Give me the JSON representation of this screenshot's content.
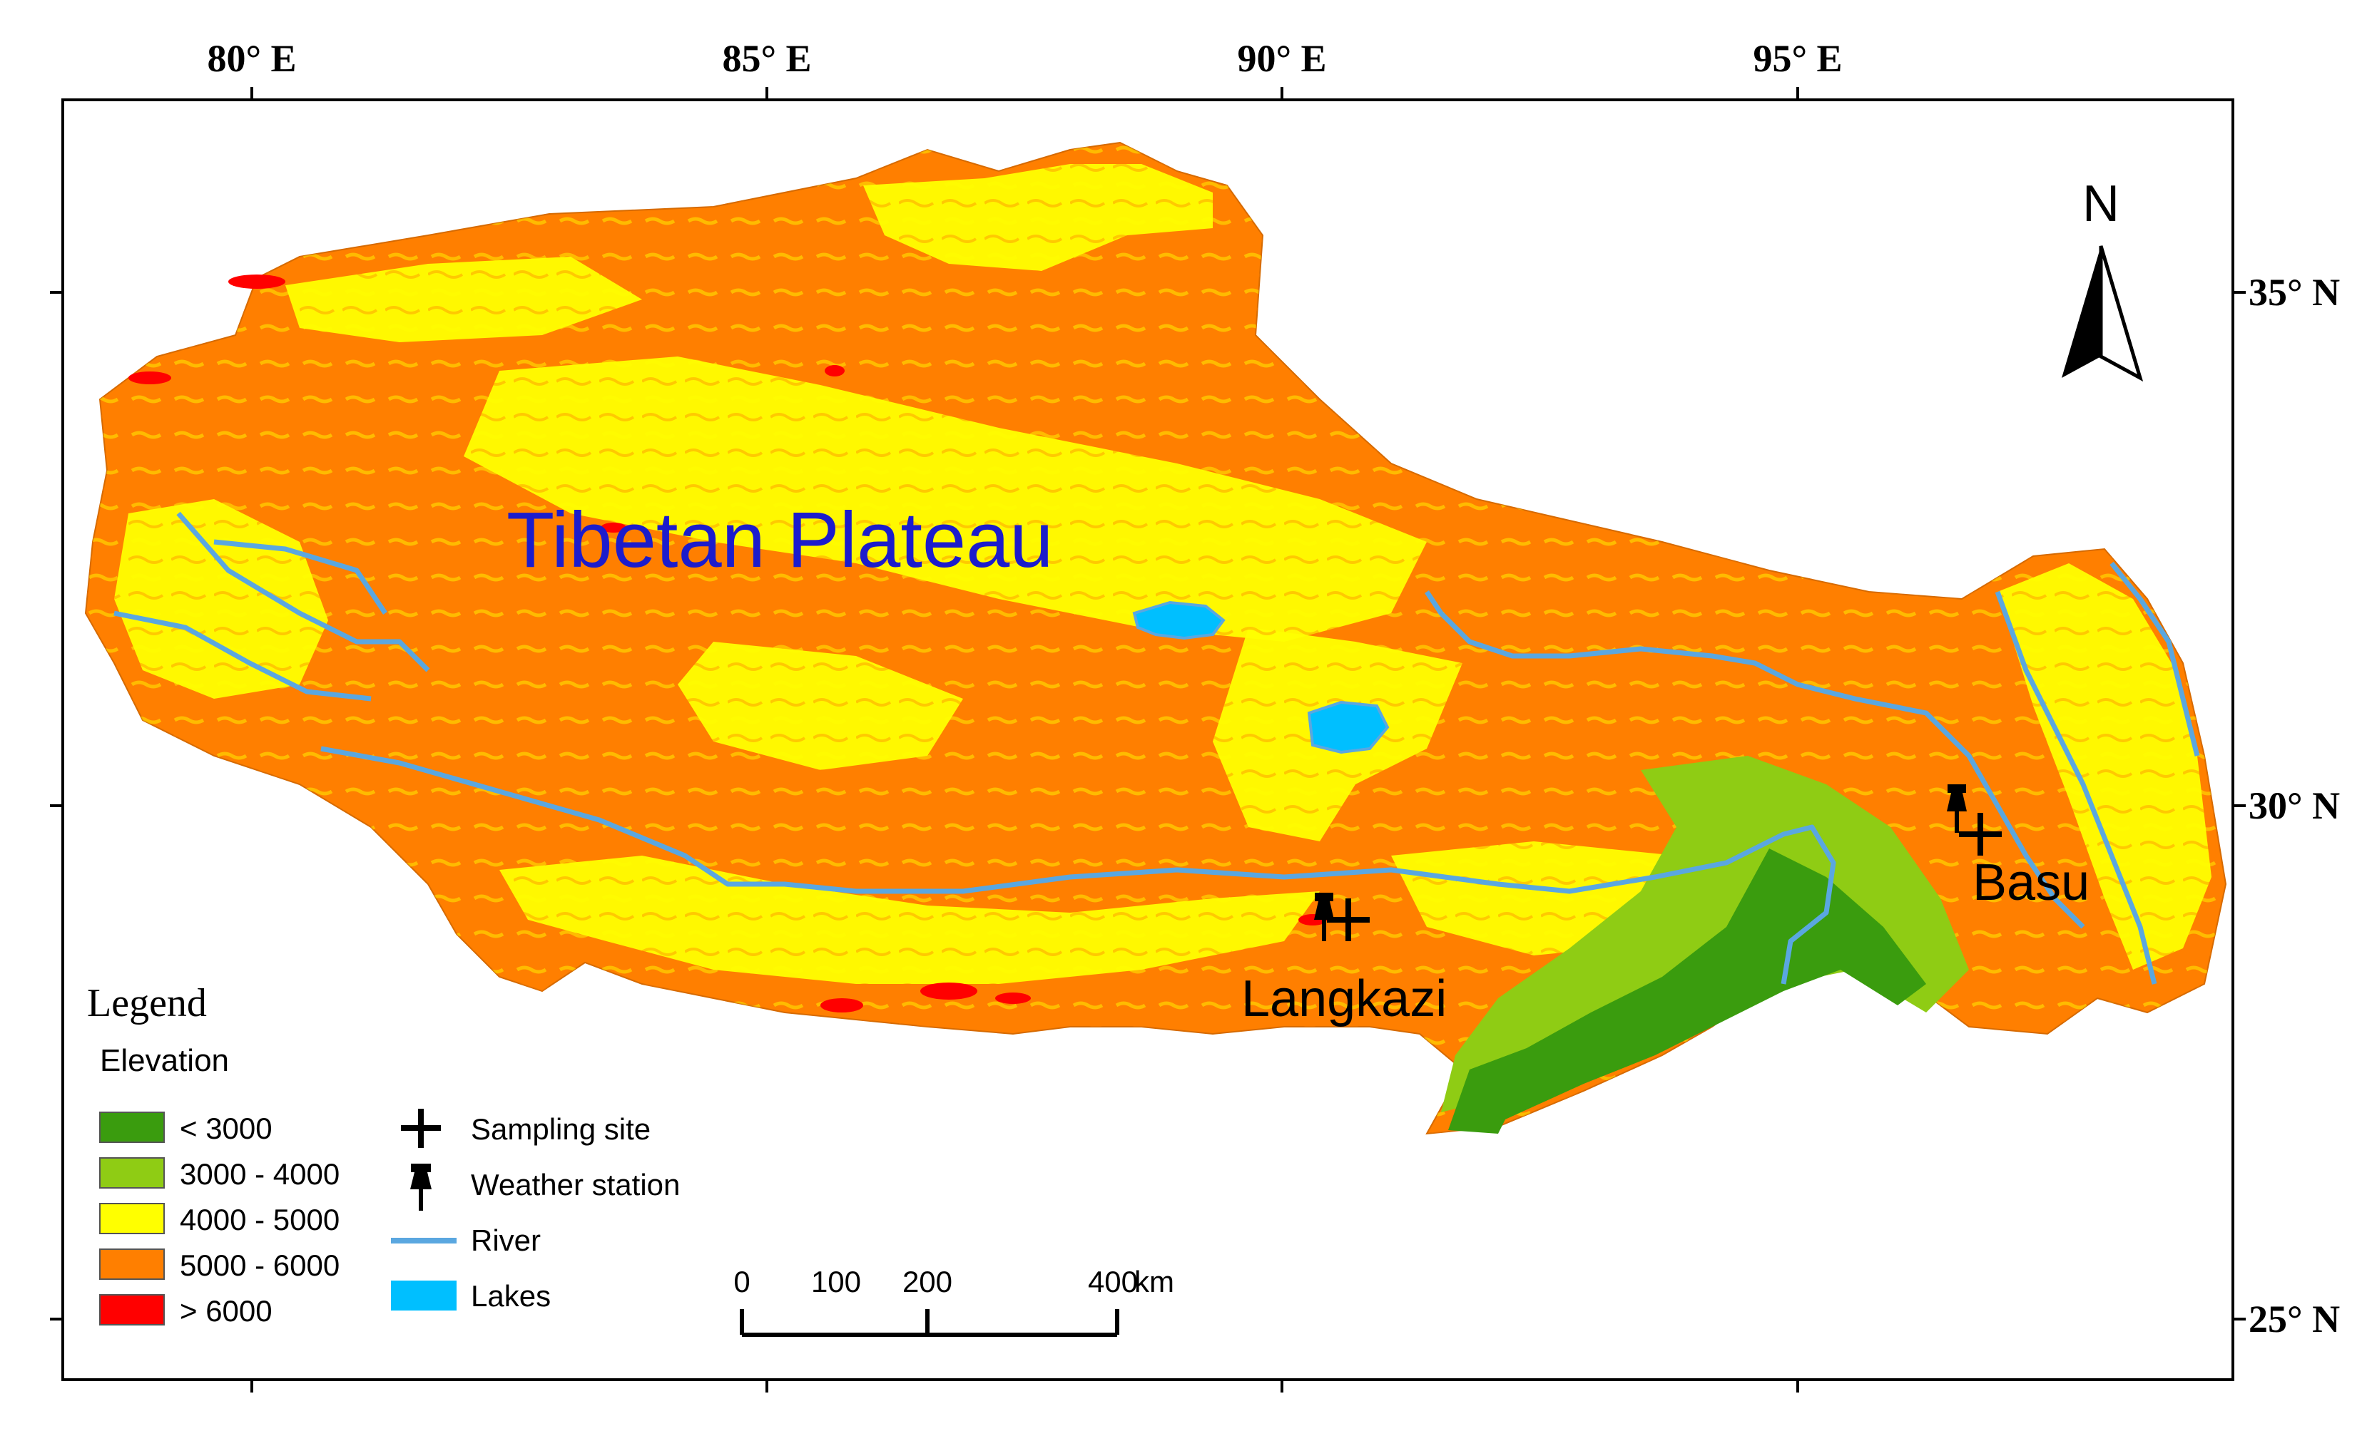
{
  "title": "Tibetan Plateau",
  "axes": {
    "top_ticks": [
      "80° E",
      "85° E",
      "90° E",
      "95° E"
    ],
    "right_ticks": [
      "35° N",
      "30° N",
      "25° N"
    ]
  },
  "north_arrow": {
    "label": "N",
    "icon": "north-arrow-icon"
  },
  "sites": [
    {
      "name": "Langkazi",
      "icon": "sampling-site-icon"
    },
    {
      "name": "Basu",
      "icon": "sampling-site-icon"
    }
  ],
  "legend": {
    "title": "Legend",
    "subtitle": "Elevation",
    "elevation": [
      {
        "label": "< 3000",
        "color": "#3a9c0e"
      },
      {
        "label": "3000 - 4000",
        "color": "#8fcc14"
      },
      {
        "label": "4000 - 5000",
        "color": "#ffff00"
      },
      {
        "label": "5000 - 6000",
        "color": "#ff7f00"
      },
      {
        "label": "> 6000",
        "color": "#ff0000"
      }
    ],
    "symbols": [
      {
        "label": "Sampling site",
        "icon": "plus-icon"
      },
      {
        "label": "Weather station",
        "icon": "pushpin-icon"
      },
      {
        "label": "River",
        "color": "#5aa7e0"
      },
      {
        "label": "Lakes",
        "color": "#00bfff"
      }
    ]
  },
  "scale_bar": {
    "ticks": [
      "0",
      "100",
      "200",
      "400"
    ],
    "unit": "km"
  }
}
